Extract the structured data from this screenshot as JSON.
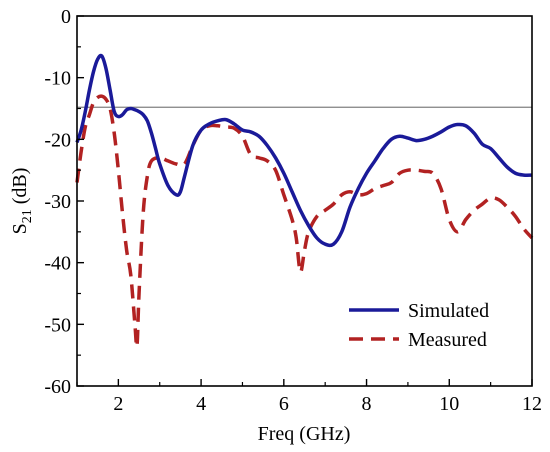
{
  "chart_data": {
    "type": "line",
    "xlabel": "Freq (GHz)",
    "ylabel": {
      "main": "S",
      "sub": "21",
      "unit": " (dB)"
    },
    "xlim": [
      1,
      12
    ],
    "ylim": [
      -60,
      0
    ],
    "xticks": [
      2,
      4,
      6,
      8,
      10,
      12
    ],
    "yticks": [
      0,
      -10,
      -20,
      -30,
      -40,
      -50,
      -60
    ],
    "reference_line": {
      "y": -14.8,
      "color": "#808080"
    },
    "legend_position": "bottom-right",
    "series": [
      {
        "name": "Simulated",
        "style": "solid",
        "color": "#1a1a99",
        "x": [
          1.0,
          1.1,
          1.2,
          1.3,
          1.4,
          1.5,
          1.6,
          1.7,
          1.8,
          1.9,
          2.0,
          2.1,
          2.2,
          2.3,
          2.4,
          2.5,
          2.6,
          2.7,
          2.8,
          2.9,
          3.0,
          3.2,
          3.4,
          3.5,
          3.6,
          3.8,
          4.0,
          4.2,
          4.4,
          4.6,
          4.8,
          5.0,
          5.2,
          5.4,
          5.6,
          5.8,
          6.0,
          6.2,
          6.4,
          6.6,
          6.8,
          7.0,
          7.2,
          7.4,
          7.6,
          7.8,
          8.0,
          8.2,
          8.4,
          8.6,
          8.8,
          9.0,
          9.2,
          9.4,
          9.6,
          9.8,
          10.0,
          10.2,
          10.4,
          10.6,
          10.8,
          11.0,
          11.2,
          11.4,
          11.6,
          11.8,
          12.0
        ],
        "y": [
          -20.5,
          -18.5,
          -15.5,
          -12.0,
          -9.0,
          -7.0,
          -6.5,
          -8.5,
          -12.0,
          -15.5,
          -16.3,
          -16.0,
          -15.2,
          -15.0,
          -15.2,
          -15.5,
          -16.0,
          -17.0,
          -19.0,
          -21.5,
          -24.0,
          -27.5,
          -29.0,
          -28.5,
          -26.0,
          -21.0,
          -18.5,
          -17.5,
          -17.0,
          -16.8,
          -17.5,
          -18.5,
          -18.8,
          -19.5,
          -21.0,
          -23.0,
          -25.5,
          -28.5,
          -31.5,
          -34.0,
          -36.0,
          -37.0,
          -37.0,
          -35.0,
          -31.0,
          -28.0,
          -25.5,
          -23.5,
          -21.5,
          -20.0,
          -19.5,
          -19.8,
          -20.2,
          -20.0,
          -19.5,
          -18.8,
          -18.0,
          -17.6,
          -17.8,
          -19.0,
          -20.8,
          -21.5,
          -23.0,
          -24.5,
          -25.5,
          -25.8,
          -25.8
        ]
      },
      {
        "name": "Measured",
        "style": "dashed",
        "color": "#b22222",
        "x": [
          1.0,
          1.1,
          1.2,
          1.3,
          1.4,
          1.5,
          1.6,
          1.7,
          1.8,
          1.9,
          2.0,
          2.1,
          2.2,
          2.3,
          2.4,
          2.45,
          2.5,
          2.6,
          2.7,
          2.8,
          3.0,
          3.2,
          3.4,
          3.6,
          3.8,
          4.0,
          4.2,
          4.4,
          4.6,
          4.8,
          5.0,
          5.2,
          5.4,
          5.6,
          5.8,
          6.0,
          6.2,
          6.3,
          6.4,
          6.5,
          6.6,
          6.8,
          7.0,
          7.2,
          7.4,
          7.6,
          7.8,
          8.0,
          8.2,
          8.4,
          8.6,
          8.8,
          9.0,
          9.2,
          9.4,
          9.6,
          9.8,
          10.0,
          10.2,
          10.4,
          10.6,
          10.8,
          11.0,
          11.2,
          11.4,
          11.6,
          11.8,
          12.0
        ],
        "y": [
          -27.0,
          -22.0,
          -18.0,
          -16.0,
          -14.0,
          -13.2,
          -13.0,
          -13.5,
          -15.0,
          -19.0,
          -25.0,
          -32.0,
          -38.0,
          -42.0,
          -50.0,
          -53.5,
          -45.0,
          -32.0,
          -26.0,
          -23.5,
          -23.0,
          -23.5,
          -24.0,
          -24.0,
          -21.0,
          -18.5,
          -17.8,
          -17.8,
          -18.0,
          -18.2,
          -19.5,
          -22.5,
          -23.0,
          -23.5,
          -25.0,
          -29.0,
          -33.0,
          -36.0,
          -41.5,
          -38.0,
          -35.0,
          -32.5,
          -31.5,
          -30.5,
          -29.0,
          -28.5,
          -29.0,
          -28.8,
          -28.0,
          -27.5,
          -27.0,
          -25.5,
          -25.0,
          -25.0,
          -25.2,
          -25.5,
          -28.0,
          -33.0,
          -35.0,
          -33.0,
          -31.5,
          -30.5,
          -29.5,
          -29.8,
          -31.0,
          -32.5,
          -34.5,
          -36.0
        ]
      }
    ]
  }
}
